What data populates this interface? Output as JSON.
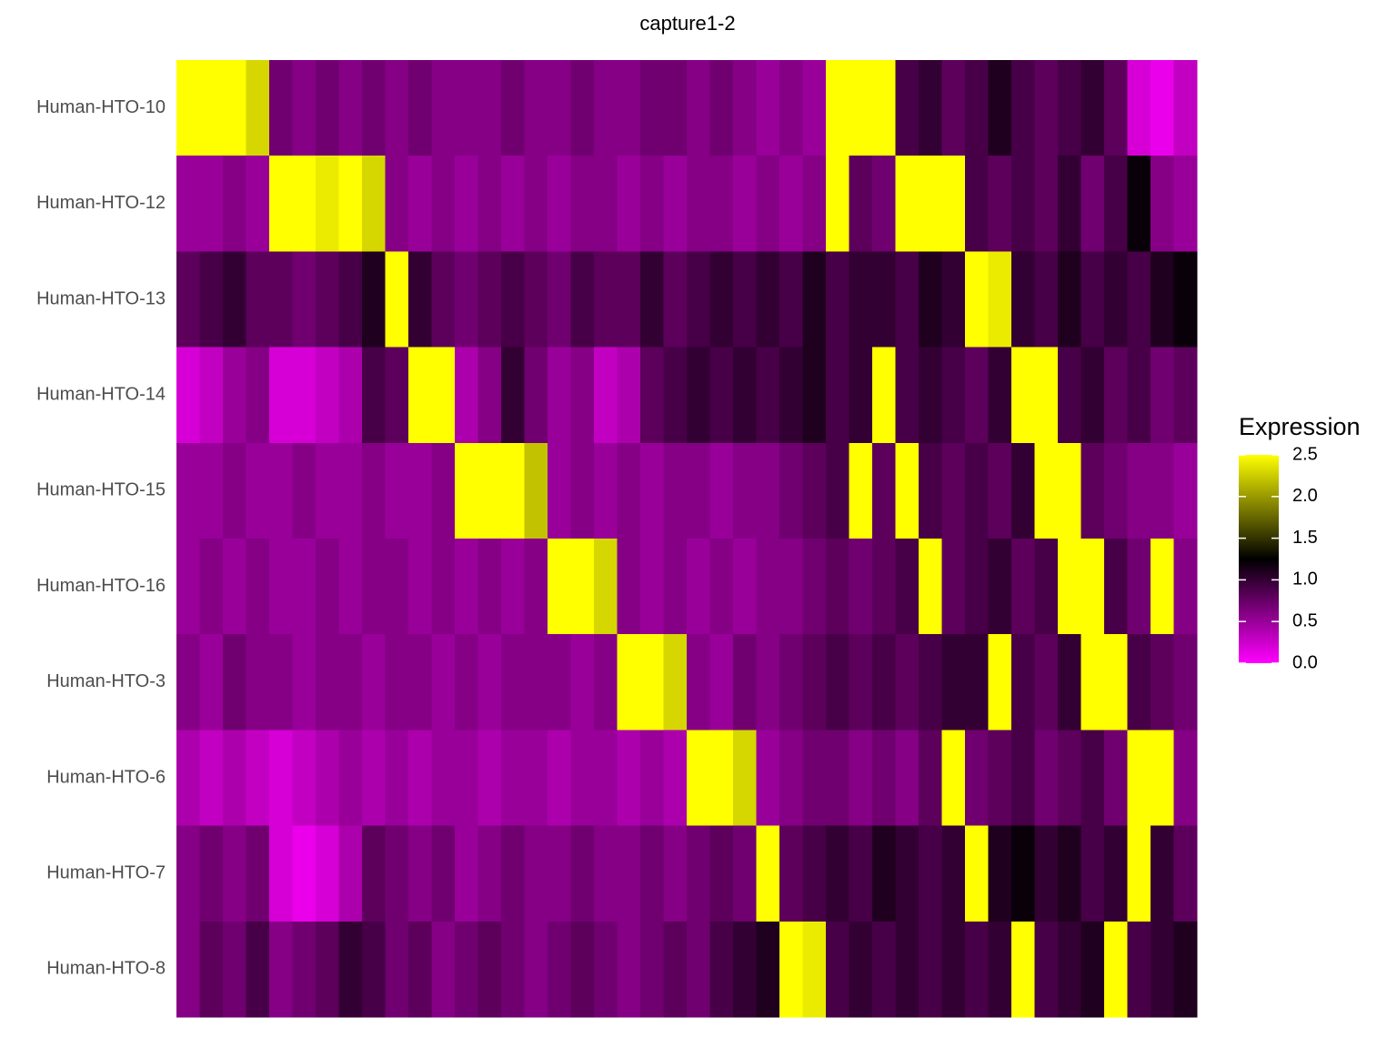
{
  "chart_data": {
    "type": "heatmap",
    "title": "capture1-2",
    "rows": [
      "Human-HTO-10",
      "Human-HTO-12",
      "Human-HTO-13",
      "Human-HTO-14",
      "Human-HTO-15",
      "Human-HTO-16",
      "Human-HTO-3",
      "Human-HTO-6",
      "Human-HTO-7",
      "Human-HTO-8"
    ],
    "values": [
      [
        2.5,
        2.5,
        2.5,
        2.3,
        0.7,
        0.6,
        0.7,
        0.6,
        0.7,
        0.6,
        0.7,
        0.6,
        0.6,
        0.6,
        0.7,
        0.6,
        0.6,
        0.7,
        0.6,
        0.6,
        0.7,
        0.7,
        0.6,
        0.7,
        0.6,
        0.5,
        0.6,
        0.5,
        2.5,
        2.5,
        2.5,
        0.9,
        1.0,
        0.8,
        0.9,
        1.1,
        0.9,
        0.8,
        0.9,
        1.0,
        0.8,
        0.2,
        0.1,
        0.3
      ],
      [
        0.5,
        0.5,
        0.6,
        0.5,
        2.5,
        2.5,
        2.4,
        2.5,
        2.3,
        0.6,
        0.5,
        0.6,
        0.5,
        0.6,
        0.5,
        0.6,
        0.5,
        0.6,
        0.6,
        0.5,
        0.6,
        0.5,
        0.6,
        0.6,
        0.5,
        0.6,
        0.5,
        0.6,
        2.5,
        0.8,
        0.7,
        2.5,
        2.5,
        2.5,
        0.9,
        0.8,
        0.9,
        0.8,
        1.0,
        0.7,
        0.9,
        1.2,
        0.6,
        0.5
      ],
      [
        0.8,
        0.9,
        1.0,
        0.8,
        0.8,
        0.7,
        0.8,
        0.9,
        1.1,
        2.5,
        1.0,
        0.8,
        0.7,
        0.8,
        0.9,
        0.8,
        0.7,
        0.9,
        0.8,
        0.8,
        1.0,
        0.8,
        0.9,
        1.0,
        0.9,
        1.0,
        0.9,
        1.1,
        0.9,
        1.0,
        1.0,
        0.9,
        1.1,
        1.0,
        2.5,
        2.4,
        1.0,
        0.9,
        1.1,
        0.9,
        1.0,
        0.9,
        1.1,
        1.2
      ],
      [
        0.2,
        0.3,
        0.5,
        0.6,
        0.2,
        0.2,
        0.3,
        0.4,
        0.9,
        0.8,
        2.5,
        2.5,
        0.4,
        0.6,
        1.0,
        0.7,
        0.5,
        0.6,
        0.3,
        0.4,
        0.8,
        0.9,
        1.0,
        0.9,
        1.0,
        0.9,
        1.0,
        1.1,
        0.9,
        1.0,
        2.5,
        0.9,
        1.0,
        0.9,
        0.8,
        1.0,
        2.5,
        2.5,
        0.9,
        1.0,
        0.8,
        0.9,
        0.7,
        0.8
      ],
      [
        0.5,
        0.5,
        0.6,
        0.5,
        0.5,
        0.6,
        0.5,
        0.5,
        0.6,
        0.5,
        0.5,
        0.6,
        2.5,
        2.5,
        2.5,
        2.2,
        0.5,
        0.6,
        0.5,
        0.6,
        0.5,
        0.6,
        0.6,
        0.5,
        0.6,
        0.6,
        0.7,
        0.8,
        0.9,
        2.5,
        0.8,
        2.5,
        0.9,
        0.8,
        0.9,
        0.8,
        1.0,
        2.5,
        2.5,
        0.8,
        0.7,
        0.6,
        0.6,
        0.5
      ],
      [
        0.5,
        0.6,
        0.5,
        0.6,
        0.5,
        0.5,
        0.6,
        0.5,
        0.6,
        0.6,
        0.5,
        0.6,
        0.5,
        0.6,
        0.5,
        0.6,
        2.5,
        2.5,
        2.3,
        0.6,
        0.5,
        0.6,
        0.5,
        0.6,
        0.5,
        0.6,
        0.6,
        0.7,
        0.8,
        0.7,
        0.8,
        0.9,
        2.5,
        0.8,
        0.9,
        1.0,
        0.8,
        0.9,
        2.5,
        2.5,
        0.9,
        0.7,
        2.5,
        0.6
      ],
      [
        0.6,
        0.5,
        0.7,
        0.6,
        0.6,
        0.5,
        0.6,
        0.6,
        0.5,
        0.6,
        0.6,
        0.5,
        0.6,
        0.5,
        0.6,
        0.6,
        0.6,
        0.5,
        0.6,
        2.5,
        2.5,
        2.3,
        0.6,
        0.5,
        0.7,
        0.6,
        0.7,
        0.8,
        0.9,
        0.8,
        0.9,
        0.8,
        0.9,
        1.0,
        1.0,
        2.5,
        0.9,
        0.8,
        1.0,
        2.5,
        2.5,
        0.9,
        0.8,
        0.7
      ],
      [
        0.4,
        0.3,
        0.4,
        0.3,
        0.2,
        0.3,
        0.4,
        0.5,
        0.4,
        0.5,
        0.4,
        0.5,
        0.5,
        0.4,
        0.5,
        0.5,
        0.4,
        0.5,
        0.5,
        0.4,
        0.5,
        0.4,
        2.5,
        2.5,
        2.3,
        0.5,
        0.6,
        0.7,
        0.7,
        0.6,
        0.7,
        0.6,
        0.8,
        2.5,
        0.7,
        0.8,
        0.9,
        0.7,
        0.8,
        0.9,
        0.7,
        2.5,
        2.5,
        0.6
      ],
      [
        0.6,
        0.7,
        0.6,
        0.7,
        0.2,
        0.1,
        0.2,
        0.4,
        0.8,
        0.7,
        0.6,
        0.7,
        0.5,
        0.6,
        0.7,
        0.6,
        0.6,
        0.7,
        0.6,
        0.6,
        0.7,
        0.6,
        0.7,
        0.8,
        0.7,
        2.5,
        0.8,
        0.9,
        1.0,
        0.9,
        1.1,
        1.0,
        0.9,
        1.0,
        2.5,
        1.1,
        1.2,
        1.0,
        1.1,
        0.9,
        1.0,
        2.5,
        1.0,
        0.8
      ],
      [
        0.6,
        0.8,
        0.7,
        0.9,
        0.6,
        0.7,
        0.8,
        1.0,
        0.9,
        0.7,
        0.8,
        0.6,
        0.7,
        0.8,
        0.7,
        0.6,
        0.7,
        0.8,
        0.7,
        0.6,
        0.7,
        0.8,
        0.7,
        0.9,
        1.0,
        1.1,
        2.5,
        2.4,
        0.9,
        1.0,
        0.9,
        1.0,
        0.9,
        1.0,
        0.9,
        1.0,
        2.5,
        0.9,
        1.0,
        1.1,
        2.5,
        0.9,
        1.0,
        1.1
      ]
    ],
    "colors": [
      "#ff00ff",
      "#000000",
      "#ffff00"
    ],
    "legend_title": "Expression",
    "zlim": [
      0,
      2.5
    ],
    "zticks": [
      {
        "value": 0,
        "label": "0.0"
      },
      0.5,
      {
        "value": 1,
        "label": "1.0"
      },
      1.5,
      {
        "value": 2,
        "label": "2.0"
      },
      2.5
    ]
  }
}
